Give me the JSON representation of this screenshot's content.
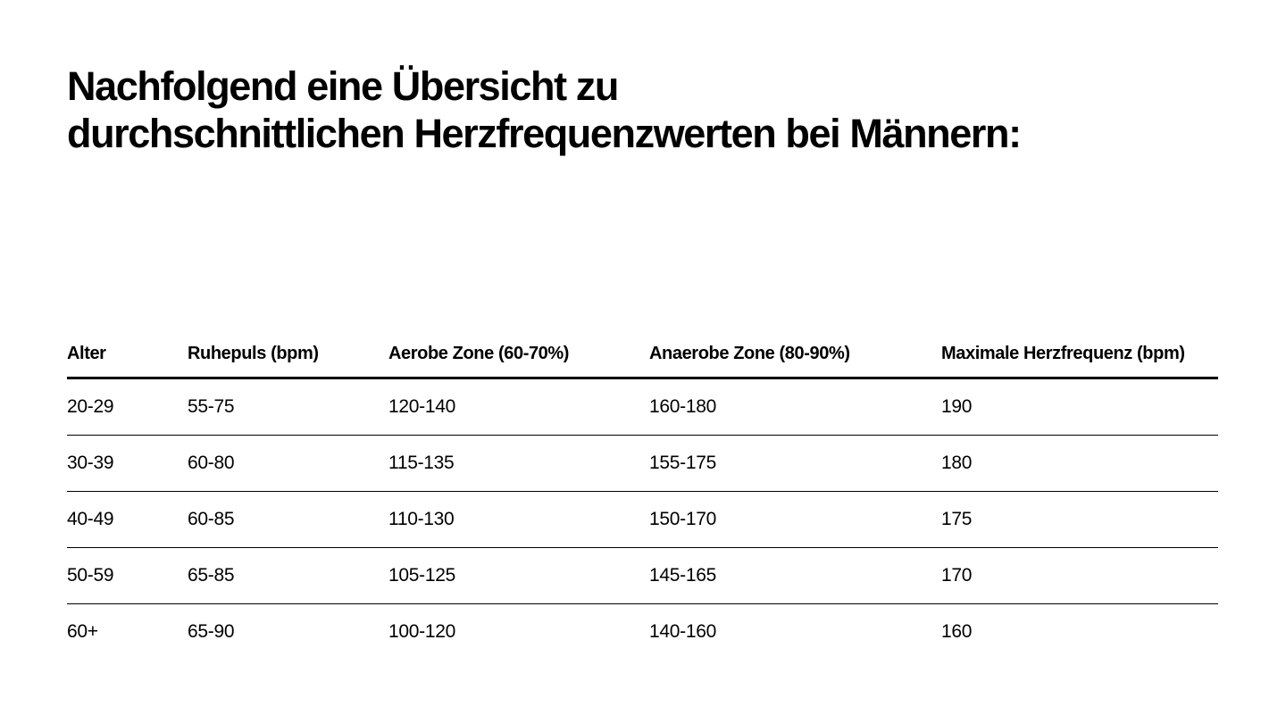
{
  "title": {
    "line1": "Nachfolgend eine Übersicht zu",
    "line2": "durchschnittlichen Herzfrequenzwerten bei Männern:"
  },
  "table": {
    "headers": [
      "Alter",
      "Ruhepuls (bpm)",
      "Aerobe Zone (60-70%)",
      "Anaerobe Zone (80-90%)",
      "Maximale Herzfrequenz (bpm)"
    ],
    "rows": [
      [
        "20-29",
        "55-75",
        "120-140",
        "160-180",
        "190"
      ],
      [
        "30-39",
        "60-80",
        "115-135",
        "155-175",
        "180"
      ],
      [
        "40-49",
        "60-85",
        "110-130",
        "150-170",
        "175"
      ],
      [
        "50-59",
        "65-85",
        "105-125",
        "145-165",
        "170"
      ],
      [
        "60+",
        "65-90",
        "100-120",
        "140-160",
        "160"
      ]
    ]
  }
}
